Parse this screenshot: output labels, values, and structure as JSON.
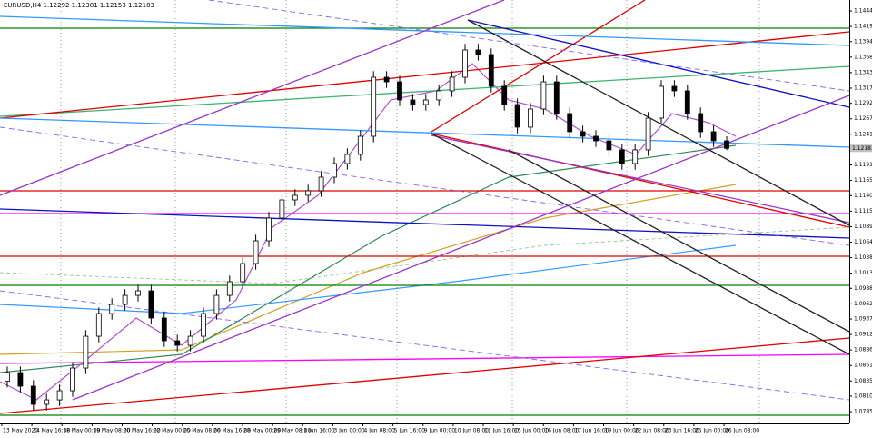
{
  "chart_data": {
    "type": "candlestick",
    "title": "EURUSD,H4 1.12292 1.12381 1.12153 1.12183",
    "last_label": "1.12183",
    "ylim": [
      1.07656,
      1.14625
    ],
    "yticks": [
      1.14445,
      {
        "value": 1.1419,
        "label": "1.14190"
      },
      {
        "value": 1.1394,
        "label": "1.13940"
      },
      1.13685,
      {
        "value": 1.1343,
        "label": "1.13430"
      },
      1.13175,
      1.12925,
      {
        "value": 1.1267,
        "label": "1.12670"
      },
      1.12415,
      {
        "value": 1.1191,
        "label": "1.11910"
      },
      1.11655,
      1.11405,
      {
        "value": 1.1115,
        "label": "1.11150"
      },
      1.10895,
      {
        "value": 1.1064,
        "label": "1.10640"
      },
      1.10385,
      {
        "value": 1.1013,
        "label": "1.10130"
      },
      {
        "value": 1.0988,
        "label": "1.09880"
      },
      1.09625,
      1.09375,
      {
        "value": 1.0912,
        "label": "1.09120"
      },
      1.08865,
      {
        "value": 1.0861,
        "label": "1.08610"
      },
      1.08355,
      1.08105,
      {
        "value": 1.0785,
        "label": "1.07850"
      }
    ],
    "xtick_labels": [
      "13 May 2020",
      "14 May 16:00",
      "18 May 00:00",
      "19 May 08:00",
      "20 May 16:00",
      "22 May 00:00",
      "25 May 08:00",
      "26 May 16:00",
      "28 May 00:00",
      "29 May 08:00",
      "1 Jun 16:00",
      "3 Jun 00:00",
      "4 Jun 08:00",
      "5 Jun 16:00",
      "9 Jun 00:00",
      "10 Jun 08:00",
      "11 Jun 16:00",
      "15 Jun 00:00",
      "16 Jun 08:00",
      "17 Jun 16:00",
      "19 Jun 00:00",
      "22 Jun 08:00",
      "23 Jun 16:00",
      "25 Jun 00:00",
      "26 Jun 08:00"
    ],
    "up_color": "#ffffff",
    "down_color": "#000000",
    "open": [
      1.0835,
      1.08493,
      1.08269,
      1.0797,
      1.08044,
      1.08194,
      1.08568,
      1.09091,
      1.09465,
      1.09615,
      1.09764,
      1.09839,
      1.09391,
      1.09017,
      1.08942,
      1.09091,
      1.09465,
      1.09764,
      1.09989,
      1.10288,
      1.10662,
      1.11036,
      1.11335,
      1.1141,
      1.11485,
      1.11709,
      1.11933,
      1.12083,
      1.12382,
      1.13354,
      1.13279,
      1.1298,
      1.12905,
      1.1298,
      1.1313,
      1.13354,
      1.13803,
      1.13728,
      1.13205,
      1.12905,
      1.12532,
      1.12831,
      1.13279,
      1.12756,
      1.12457,
      1.12382,
      1.12307,
      1.12158,
      1.11933,
      1.12158,
      1.12681,
      1.13205,
      1.1313,
      1.12756,
      1.12457,
      1.12307
    ],
    "high": [
      1.08593,
      1.08593,
      1.08369,
      1.08144,
      1.08294,
      1.08668,
      1.09191,
      1.09565,
      1.09715,
      1.09864,
      1.09939,
      1.09939,
      1.09491,
      1.09117,
      1.09191,
      1.09565,
      1.09864,
      1.10089,
      1.10388,
      1.10762,
      1.11136,
      1.11435,
      1.1151,
      1.11585,
      1.11809,
      1.12033,
      1.12183,
      1.12482,
      1.13454,
      1.13454,
      1.13379,
      1.1308,
      1.1308,
      1.1323,
      1.13454,
      1.13903,
      1.13903,
      1.13828,
      1.13305,
      1.13005,
      1.12931,
      1.13379,
      1.13379,
      1.12856,
      1.12557,
      1.12482,
      1.12407,
      1.12258,
      1.12258,
      1.12781,
      1.13305,
      1.13305,
      1.1323,
      1.12856,
      1.12557,
      1.12381
    ],
    "low": [
      1.0825,
      1.08169,
      1.0787,
      1.0787,
      1.07944,
      1.08094,
      1.08468,
      1.08991,
      1.09365,
      1.09515,
      1.09664,
      1.09291,
      1.08917,
      1.08842,
      1.08842,
      1.08991,
      1.09365,
      1.09664,
      1.09889,
      1.10188,
      1.10562,
      1.10936,
      1.11235,
      1.1131,
      1.11385,
      1.11609,
      1.11833,
      1.11983,
      1.12282,
      1.13179,
      1.1288,
      1.12805,
      1.12805,
      1.1288,
      1.1303,
      1.13254,
      1.13628,
      1.13105,
      1.12805,
      1.12432,
      1.12432,
      1.12731,
      1.12656,
      1.12357,
      1.12282,
      1.12207,
      1.12058,
      1.11833,
      1.11833,
      1.12058,
      1.12581,
      1.1303,
      1.12656,
      1.12357,
      1.12207,
      1.12153
    ],
    "close": [
      1.08493,
      1.08269,
      1.0797,
      1.08044,
      1.08194,
      1.08568,
      1.09091,
      1.09465,
      1.09615,
      1.09764,
      1.09839,
      1.09391,
      1.09017,
      1.08942,
      1.09091,
      1.09465,
      1.09764,
      1.09989,
      1.10288,
      1.10662,
      1.11036,
      1.11335,
      1.1141,
      1.11485,
      1.11709,
      1.11933,
      1.12083,
      1.12382,
      1.13354,
      1.13279,
      1.1298,
      1.12905,
      1.1298,
      1.1313,
      1.13354,
      1.13803,
      1.13728,
      1.13205,
      1.12905,
      1.12532,
      1.12831,
      1.13279,
      1.12756,
      1.12457,
      1.12382,
      1.12307,
      1.12158,
      1.11933,
      1.12158,
      1.12681,
      1.13205,
      1.1313,
      1.12756,
      1.12457,
      1.12307,
      1.12183
    ]
  }
}
